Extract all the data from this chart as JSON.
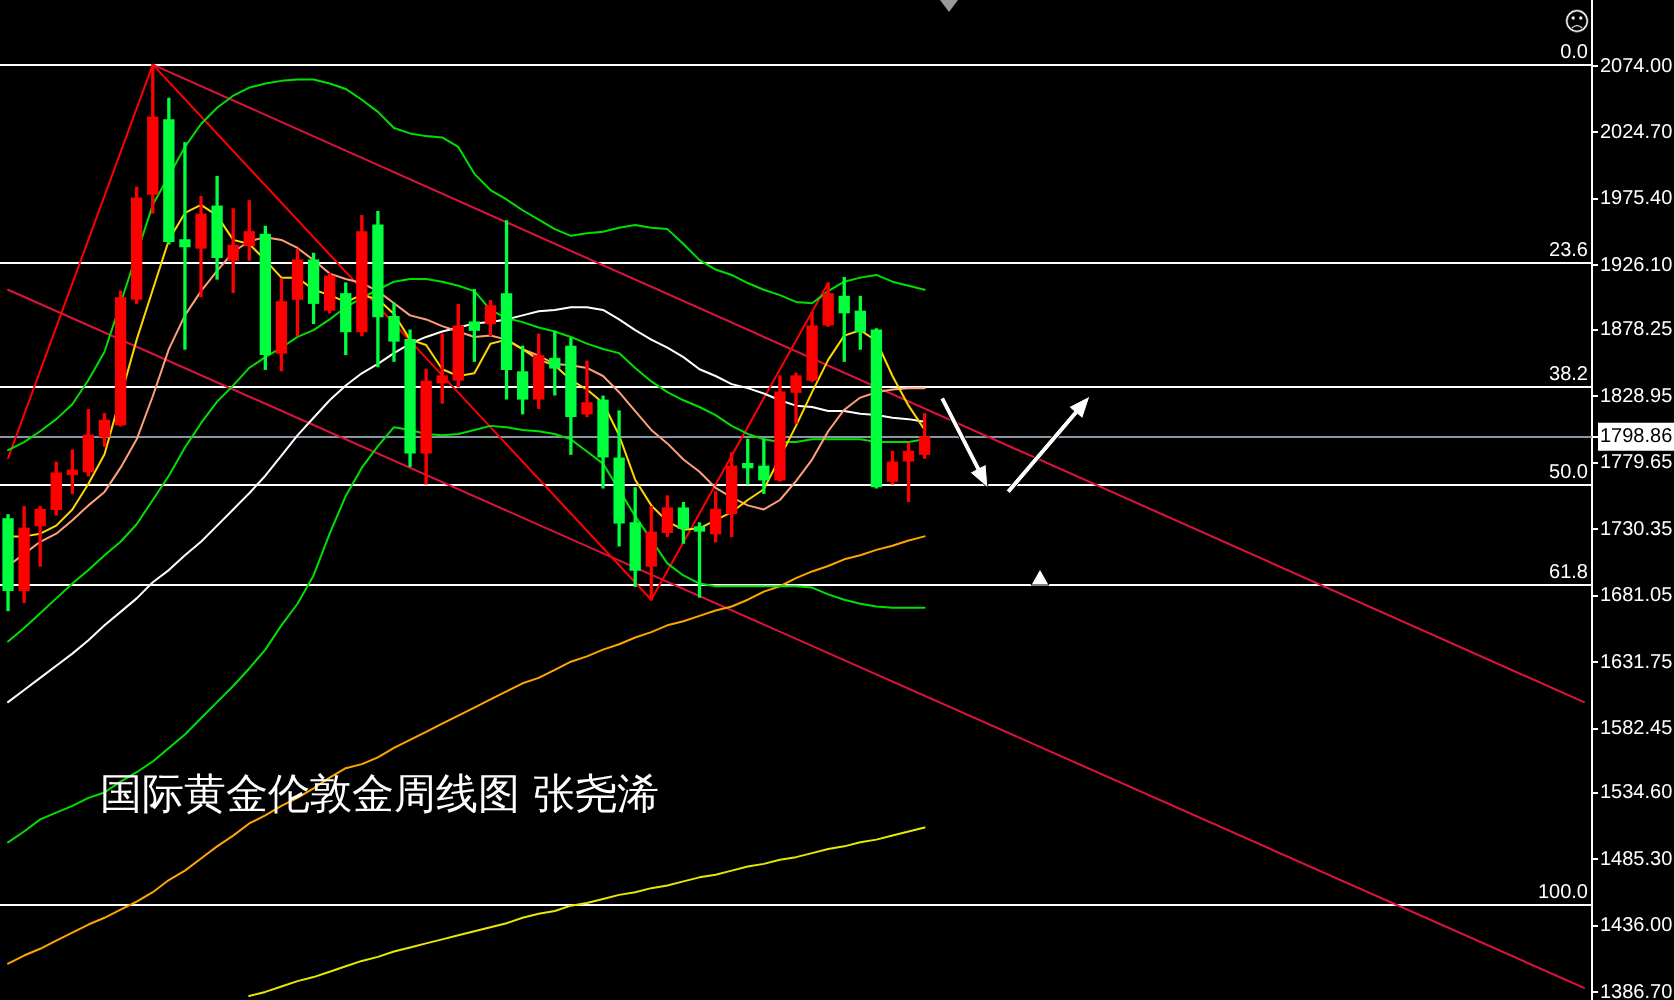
{
  "chart_data": {
    "type": "candlestick",
    "title": "国际黄金伦敦金周线图 张尧浠",
    "categories": [
      null,
      null,
      null,
      null,
      null,
      null,
      null,
      null,
      null,
      null,
      null,
      null,
      null,
      null,
      null,
      null,
      null,
      null,
      null,
      null,
      null,
      null,
      null,
      null,
      null,
      null,
      null,
      null,
      null,
      null,
      null,
      null,
      null,
      null,
      null,
      null,
      null,
      null,
      null,
      null,
      null,
      null,
      null,
      null,
      null,
      null,
      null,
      null,
      null,
      null,
      null,
      null,
      null,
      null,
      null,
      null,
      null,
      null,
      null,
      null,
      null,
      null,
      null,
      null,
      null,
      null,
      null,
      null,
      null,
      null,
      null,
      null,
      null,
      null,
      null,
      null,
      null,
      null,
      null,
      null,
      null,
      null,
      null,
      null,
      null,
      null,
      null,
      null,
      null,
      null,
      null,
      null,
      null,
      null,
      null,
      null,
      null,
      null,
      null
    ],
    "ohlc": [
      [
        1738,
        1741,
        1670,
        1685
      ],
      [
        1685,
        1747,
        1676,
        1731
      ],
      [
        1733,
        1747,
        1703,
        1745
      ],
      [
        1745,
        1780,
        1741,
        1772
      ],
      [
        1771,
        1789,
        1757,
        1774
      ],
      [
        1773,
        1819,
        1770,
        1800
      ],
      [
        1799,
        1816,
        1792,
        1811
      ],
      [
        1808,
        1907,
        1807,
        1902
      ],
      [
        1901,
        1984,
        1898,
        1976
      ],
      [
        1979,
        2075,
        1965,
        2036
      ],
      [
        2034,
        2050,
        1942,
        1944
      ],
      [
        1945,
        2017,
        1864,
        1940
      ],
      [
        1939,
        1977,
        1903,
        1964
      ],
      [
        1970,
        1992,
        1916,
        1932
      ],
      [
        1930,
        1968,
        1906,
        1941
      ],
      [
        1941,
        1974,
        1930,
        1951
      ],
      [
        1949,
        1955,
        1849,
        1860
      ],
      [
        1861,
        1916,
        1848,
        1899
      ],
      [
        1901,
        1938,
        1874,
        1930
      ],
      [
        1930,
        1935,
        1883,
        1898
      ],
      [
        1893,
        1920,
        1891,
        1918
      ],
      [
        1905,
        1913,
        1860,
        1877
      ],
      [
        1877,
        1963,
        1874,
        1951
      ],
      [
        1956,
        1966,
        1851,
        1888
      ],
      [
        1888,
        1898,
        1855,
        1870
      ],
      [
        1871,
        1878,
        1777,
        1787
      ],
      [
        1787,
        1849,
        1764,
        1840
      ],
      [
        1839,
        1875,
        1824,
        1844
      ],
      [
        1841,
        1897,
        1836,
        1881
      ],
      [
        1884,
        1908,
        1855,
        1878
      ],
      [
        1883,
        1900,
        1874,
        1896
      ],
      [
        1905,
        1959,
        1827,
        1849
      ],
      [
        1847,
        1866,
        1816,
        1827
      ],
      [
        1827,
        1875,
        1820,
        1859
      ],
      [
        1857,
        1877,
        1830,
        1850
      ],
      [
        1866,
        1872,
        1786,
        1814
      ],
      [
        1816,
        1855,
        1814,
        1824
      ],
      [
        1826,
        1829,
        1761,
        1784
      ],
      [
        1783,
        1818,
        1718,
        1735
      ],
      [
        1735,
        1761,
        1688,
        1700
      ],
      [
        1703,
        1747,
        1678,
        1728
      ],
      [
        1728,
        1755,
        1725,
        1746
      ],
      [
        1746,
        1750,
        1720,
        1731
      ],
      [
        1732,
        1735,
        1680,
        1729
      ],
      [
        1727,
        1758,
        1721,
        1745
      ],
      [
        1742,
        1787,
        1725,
        1777
      ],
      [
        1779,
        1797,
        1764,
        1776
      ],
      [
        1777,
        1797,
        1757,
        1767
      ],
      [
        1767,
        1844,
        1766,
        1832
      ],
      [
        1832,
        1846,
        1809,
        1844
      ],
      [
        1841,
        1891,
        1840,
        1881
      ],
      [
        1882,
        1913,
        1881,
        1905
      ],
      [
        1903,
        1917,
        1855,
        1891
      ],
      [
        1892,
        1903,
        1864,
        1877
      ],
      [
        1878,
        1879,
        1761,
        1762
      ],
      [
        1766,
        1788,
        1764,
        1780
      ],
      [
        1781,
        1794,
        1751,
        1788
      ],
      [
        1786,
        1816,
        1783,
        1798.86
      ],
      null,
      null,
      null,
      null,
      null,
      null,
      null,
      null,
      null,
      null,
      null,
      null,
      null,
      null,
      null,
      null,
      null,
      null,
      null,
      null,
      null,
      null,
      null,
      null,
      null,
      null,
      null,
      null,
      null,
      null,
      null,
      null,
      null,
      null,
      null,
      null,
      null,
      null,
      null,
      null,
      null
    ],
    "colors": [
      "#00ff3c",
      "#ff0000",
      "#ff0000",
      "#ff0000",
      "#ff0000",
      "#ff0000",
      "#ff0000",
      "#ff0000",
      "#ff0000",
      "#ff0000",
      "#00ff3c",
      "#00ff3c",
      "#ff0000",
      "#00ff3c",
      "#ff0000",
      "#ff0000",
      "#00ff3c",
      "#ff0000",
      "#ff0000",
      "#00ff3c",
      "#ff0000",
      "#00ff3c",
      "#ff0000",
      "#00ff3c",
      "#00ff3c",
      "#00ff3c",
      "#ff0000",
      "#ff0000",
      "#ff0000",
      "#00ff3c",
      "#ff0000",
      "#00ff3c",
      "#00ff3c",
      "#ff0000",
      "#00ff3c",
      "#00ff3c",
      "#ff0000",
      "#00ff3c",
      "#00ff3c",
      "#00ff3c",
      "#ff0000",
      "#ff0000",
      "#00ff3c",
      "#00ff3c",
      "#ff0000",
      "#ff0000",
      "#00ff3c",
      "#00ff3c",
      "#ff0000",
      "#ff0000",
      "#ff0000",
      "#ff0000",
      "#00ff3c",
      "#00ff3c",
      "#00ff3c",
      "#ff0000",
      "#ff0000",
      "#ff0000",
      null,
      null,
      null,
      null,
      null,
      null,
      null,
      null,
      null,
      null,
      null,
      null,
      null,
      null,
      null,
      null,
      null,
      null,
      null,
      null,
      null,
      null,
      null,
      null,
      null,
      null,
      null,
      null,
      null,
      null,
      null,
      null,
      null,
      null,
      null,
      null,
      null,
      null,
      null,
      null,
      null
    ],
    "series": [
      {
        "type": "line",
        "color": "#ffd700",
        "values": [
          1725,
          1725,
          1727,
          1733,
          1745,
          1764,
          1786,
          null,
          1871,
          1908,
          1945,
          1965,
          1971,
          1963,
          1945,
          1942,
          1930,
          1917,
          1917,
          1908,
          1904,
          1899,
          1904,
          1901,
          1890,
          1871,
          1867,
          1849,
          1844,
          1846,
          1868,
          1871,
          1864,
          1856,
          1852,
          1841,
          1834,
          1824,
          1800,
          1767,
          1748,
          1736,
          1730,
          1731,
          1737,
          1743,
          1752,
          1760,
          null,
          1807,
          1832,
          1856,
          1874,
          1878,
          1870,
          1844,
          1822,
          1804,
          null,
          null,
          null,
          null,
          null,
          null,
          null,
          null,
          null,
          null,
          null,
          null,
          null,
          null,
          null,
          null,
          null,
          null,
          null,
          null,
          null,
          null,
          null,
          null,
          null,
          null,
          null,
          null,
          null,
          null,
          null,
          null,
          null,
          null,
          null,
          null,
          null,
          null,
          null,
          null,
          null
        ]
      },
      {
        "type": "line",
        "color": "#ffa07a",
        "values": [
          1703,
          1712,
          1721,
          1727,
          1737,
          1748,
          1758,
          1776,
          1797,
          1829,
          1864,
          1889,
          1907,
          1922,
          1936,
          1944,
          1947,
          1945,
          1939,
          1930,
          1920,
          1916,
          1913,
          1907,
          1898,
          1889,
          1886,
          1881,
          1877,
          1873,
          1874,
          1871,
          1864,
          1859,
          1853,
          1852,
          1850,
          1844,
          1832,
          1818,
          1804,
          1794,
          1782,
          1773,
          1761,
          1754,
          1748,
          1745,
          1752,
          1766,
          1782,
          1803,
          1819,
          1828,
          1832,
          1834,
          1835,
          1835,
          null,
          null,
          null,
          null,
          null,
          null,
          null,
          null,
          null,
          null,
          null,
          null,
          null,
          null,
          null,
          null,
          null,
          null,
          null,
          null,
          null,
          null,
          null,
          null,
          null,
          null,
          null,
          null,
          null,
          null,
          null,
          null,
          null,
          null,
          null,
          null,
          null,
          null,
          null,
          null,
          null
        ]
      },
      {
        "type": "line",
        "color": "#ffffff",
        "values": [
          1602,
          1611,
          1620,
          1629,
          1638,
          1648,
          1659,
          1669,
          1679,
          1691,
          1700,
          1711,
          1721,
          1733,
          1745,
          1757,
          1770,
          1785,
          1800,
          1813,
          1826,
          1837,
          1846,
          1853,
          1861,
          1868,
          1873,
          1877,
          1880,
          1883,
          1884,
          1886,
          1889,
          1892,
          1893,
          1895,
          1895,
          1893,
          1886,
          1878,
          1871,
          1865,
          1858,
          1849,
          1844,
          1838,
          1835,
          1831,
          1826,
          1822,
          1821,
          1818,
          1818,
          1816,
          1815,
          1813,
          1812,
          1810,
          null,
          null,
          null,
          null,
          null,
          null,
          null,
          null,
          null,
          null,
          null,
          null,
          null,
          null,
          null,
          null,
          null,
          null,
          null,
          null,
          null,
          null,
          null,
          null,
          null,
          null,
          null,
          null,
          null,
          null,
          null,
          null,
          null,
          null,
          null,
          null,
          null,
          null,
          null,
          null,
          null
        ]
      },
      {
        "type": "line",
        "color": "#00e000",
        "values": [
          1789,
          1795,
          1803,
          1812,
          1823,
          1841,
          1862,
          1898,
          null,
          1971,
          null,
          2014,
          2031,
          2043,
          2052,
          2058,
          2061,
          2063,
          2064,
          2064,
          2061,
          2057,
          2049,
          2040,
          2028,
          2024,
          2022,
          2021,
          2014,
          1994,
          1982,
          1975,
          1967,
          1960,
          1953,
          1948,
          1950,
          1951,
          1954,
          1956,
          1954,
          1953,
          1942,
          1930,
          1923,
          1919,
          1913,
          1908,
          1904,
          1899,
          1898,
          1907,
          1914,
          1917,
          1919,
          1914,
          1911,
          1908,
          null,
          null,
          null,
          null,
          null,
          null,
          null,
          null,
          null,
          null,
          null,
          null,
          null,
          null,
          null,
          null,
          null,
          null,
          null,
          null,
          null,
          null,
          null,
          null,
          null,
          null,
          null,
          null,
          null,
          null,
          null,
          null,
          null,
          null,
          null,
          null,
          null,
          null,
          null,
          null,
          null
        ]
      },
      {
        "type": "line",
        "color": "#00e000",
        "values": [
          1647,
          1657,
          1668,
          1679,
          1690,
          1700,
          1711,
          1721,
          1734,
          1752,
          1770,
          1791,
          1809,
          1825,
          1837,
          1850,
          1858,
          1865,
          1873,
          1878,
          1886,
          1895,
          1902,
          1908,
          1914,
          1916,
          1916,
          1914,
          1911,
          1907,
          1893,
          1887,
          1884,
          1880,
          1877,
          1873,
          1868,
          1864,
          1861,
          1850,
          1840,
          1832,
          1826,
          1821,
          1815,
          1807,
          1801,
          1797,
          1795,
          1795,
          1797,
          1797,
          1797,
          1797,
          1795,
          1795,
          1795,
          1797,
          null,
          null,
          null,
          null,
          null,
          null,
          null,
          null,
          null,
          null,
          null,
          null,
          null,
          null,
          null,
          null,
          null,
          null,
          null,
          null,
          null,
          null,
          null,
          null,
          null,
          null,
          null,
          null,
          null,
          null,
          null,
          null,
          null,
          null,
          null,
          null,
          null,
          null,
          null,
          null,
          null
        ]
      },
      {
        "type": "line",
        "color": "#00e000",
        "values": [
          1498,
          1506,
          1515,
          1520,
          1525,
          1531,
          1535,
          1543,
          1550,
          1558,
          1568,
          1578,
          1590,
          1602,
          1614,
          1627,
          1641,
          1659,
          1675,
          1696,
          1727,
          1755,
          1776,
          1792,
          1806,
          1804,
          1801,
          1800,
          1801,
          1804,
          1807,
          1806,
          1804,
          1803,
          1801,
          1797,
          1788,
          1779,
          null,
          1740,
          null,
          1705,
          1696,
          1690,
          1688,
          1688,
          1688,
          1688,
          1688,
          1688,
          1687,
          1682,
          1678,
          1675,
          1673,
          1672,
          1672,
          1672,
          null,
          null,
          null,
          null,
          null,
          null,
          null,
          null,
          null,
          null,
          null,
          null,
          null,
          null,
          null,
          null,
          null,
          null,
          null,
          null,
          null,
          null,
          null,
          null,
          null,
          null,
          null,
          null,
          null,
          null,
          null,
          null,
          null,
          null,
          null,
          null,
          null,
          null,
          null,
          null,
          null
        ]
      },
      {
        "type": "line",
        "color": "#ffa500",
        "values": [
          1408,
          1414,
          1419,
          1425,
          1431,
          1437,
          1442,
          1448,
          1454,
          1461,
          1470,
          1477,
          1486,
          1495,
          1503,
          1512,
          1518,
          1525,
          1531,
          1538,
          1546,
          1553,
          1556,
          1561,
          1568,
          1574,
          1580,
          1586,
          1592,
          1598,
          1604,
          1610,
          1616,
          1620,
          1626,
          1632,
          1636,
          1641,
          1645,
          1650,
          1654,
          1659,
          1662,
          1666,
          1670,
          1673,
          1678,
          1684,
          1688,
          1694,
          1699,
          1703,
          1708,
          1711,
          1715,
          1718,
          1722,
          1725,
          null,
          null,
          null,
          null,
          null,
          null,
          null,
          null,
          null,
          null,
          null,
          null,
          null,
          null,
          null,
          null,
          null,
          null,
          null,
          null,
          null,
          null,
          null,
          null,
          null,
          null,
          null,
          null,
          null,
          null,
          null,
          null,
          null,
          null,
          null,
          null,
          null,
          null,
          null,
          null,
          null
        ]
      },
      {
        "type": "line",
        "color": "#e8e800",
        "values": [
          null,
          null,
          null,
          null,
          null,
          null,
          null,
          null,
          null,
          null,
          null,
          null,
          null,
          null,
          null,
          1384,
          1387,
          1391,
          1395,
          1398,
          1402,
          1406,
          1410,
          1413,
          1417,
          1420,
          1423,
          1426,
          1429,
          1432,
          1435,
          1438,
          1442,
          1445,
          1447,
          1451,
          1453,
          1456,
          1459,
          1461,
          1464,
          1466,
          1469,
          1472,
          1474,
          1477,
          1480,
          1482,
          1485,
          1487,
          1490,
          1493,
          1495,
          1498,
          1500,
          1503,
          1506,
          1509,
          null,
          null,
          null,
          null,
          null,
          null,
          null,
          null,
          null,
          null,
          null,
          null,
          null,
          null,
          null,
          null,
          null,
          null,
          null,
          null,
          null,
          null,
          null,
          null,
          null,
          null,
          null,
          null,
          null,
          null,
          null,
          null,
          null,
          null,
          null,
          null,
          null,
          null,
          null,
          null,
          null
        ]
      },
      {
        "type": "line",
        "color": "#ff0000",
        "values": [
          1783,
          null,
          null,
          null,
          null,
          null,
          null,
          null,
          null,
          2075,
          null,
          null,
          null,
          null,
          null,
          null,
          null,
          null,
          null,
          null,
          null,
          null,
          null,
          null,
          null,
          null,
          null,
          null,
          null,
          null,
          null,
          null,
          null,
          null,
          null,
          null,
          null,
          null,
          null,
          null,
          1678,
          null,
          null,
          null,
          null,
          null,
          null,
          null,
          null,
          null,
          null,
          1913,
          null,
          null,
          null,
          null,
          null,
          null,
          null,
          null,
          null,
          null,
          null,
          null,
          null,
          null,
          null,
          null,
          null,
          null,
          null,
          null,
          null,
          null,
          null,
          null,
          null,
          null,
          null,
          null,
          null,
          null,
          null,
          null,
          null,
          null,
          null,
          null,
          null,
          null,
          null,
          null,
          null,
          null,
          null,
          null,
          null,
          null,
          null
        ]
      },
      {
        "type": "line",
        "color": "#dc143c",
        "values": [
          null,
          null,
          null,
          null,
          null,
          null,
          null,
          null,
          null,
          2075,
          null,
          null,
          null,
          null,
          null,
          null,
          null,
          null,
          null,
          null,
          null,
          null,
          null,
          null,
          null,
          null,
          null,
          null,
          null,
          null,
          null,
          null,
          null,
          null,
          null,
          null,
          null,
          null,
          null,
          null,
          null,
          null,
          null,
          null,
          null,
          null,
          null,
          null,
          null,
          null,
          null,
          null,
          null,
          null,
          null,
          null,
          null,
          null,
          null,
          null,
          null,
          null,
          null,
          null,
          null,
          null,
          null,
          null,
          null,
          null,
          null,
          null,
          null,
          null,
          null,
          null,
          null,
          null,
          null,
          null,
          null,
          null,
          null,
          null,
          null,
          null,
          null,
          null,
          null,
          null,
          null,
          null,
          null,
          null,
          null,
          null,
          null,
          null,
          1602
        ]
      },
      {
        "type": "line",
        "color": "#dc143c",
        "values": [
          1908,
          null,
          null,
          null,
          null,
          null,
          null,
          null,
          null,
          null,
          null,
          null,
          null,
          null,
          null,
          null,
          null,
          null,
          null,
          null,
          null,
          null,
          null,
          null,
          null,
          null,
          null,
          null,
          null,
          null,
          null,
          null,
          null,
          null,
          null,
          null,
          null,
          null,
          null,
          null,
          null,
          null,
          null,
          null,
          null,
          null,
          null,
          null,
          null,
          null,
          null,
          null,
          null,
          null,
          null,
          null,
          null,
          null,
          null,
          null,
          null,
          null,
          null,
          null,
          null,
          null,
          null,
          null,
          null,
          null,
          null,
          null,
          null,
          null,
          null,
          null,
          null,
          null,
          null,
          null,
          null,
          null,
          null,
          null,
          null,
          null,
          null,
          null,
          null,
          null,
          null,
          null,
          null,
          null,
          null,
          null,
          null,
          null,
          1390
        ]
      }
    ],
    "ylim": [
      1381,
      2123
    ],
    "yticks": [
      {
        "value": 2074,
        "label": "2074.00"
      },
      {
        "value": 2024.7,
        "label": "2024.70"
      },
      {
        "value": 1975.4,
        "label": "1975.40"
      },
      {
        "value": 1926.1,
        "label": "1926.10"
      },
      1878.25,
      1828.95,
      1798.86,
      1779.65,
      1730.35,
      1681.05,
      1631.75,
      1582.45,
      {
        "value": 1534.6,
        "label": "1534.60"
      },
      {
        "value": 1485.3,
        "label": "1485.30"
      },
      {
        "value": 1436,
        "label": "1436.00"
      },
      {
        "value": 1386.7,
        "label": "1386.70"
      }
    ],
    "y2lim": [
      111.4,
      -7.7
    ],
    "ref_lines": [
      {
        "axis": "y2",
        "value": 0,
        "label": "0.0",
        "color": "#ffffff"
      },
      {
        "axis": "y2",
        "value": 23.6,
        "label": "23.6",
        "color": "#ffffff"
      },
      {
        "axis": "y2",
        "value": 38.2,
        "label": "38.2",
        "color": "#ffffff"
      },
      {
        "axis": "y2",
        "value": 50,
        "label": "50.0",
        "color": "#ffffff"
      },
      {
        "axis": "y2",
        "value": 61.8,
        "label": "61.8",
        "color": "#ffffff"
      },
      {
        "axis": "y2",
        "value": 100,
        "label": "100.0",
        "color": "#ffffff"
      },
      {
        "axis": "y",
        "value": 1798.86,
        "color": "#8a97a6"
      }
    ],
    "grid": false,
    "legend": false,
    "tick_labels": "y",
    "marker": "none"
  }
}
